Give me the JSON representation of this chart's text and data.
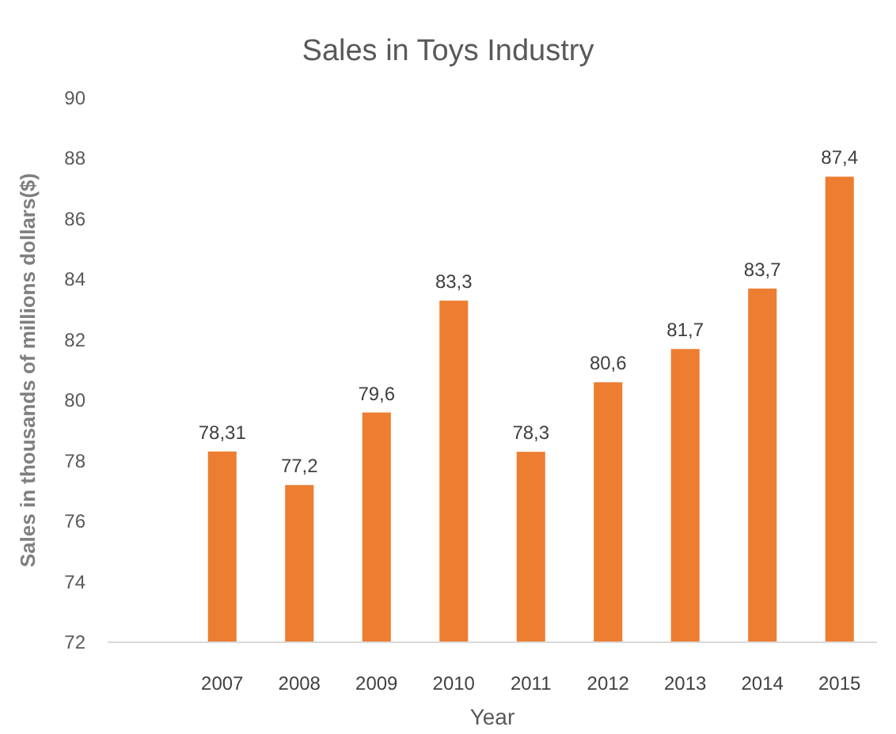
{
  "chart_data": {
    "type": "bar",
    "title": "Sales in Toys Industry",
    "xlabel": "Year",
    "ylabel": "Sales in thousands of millions dollars($)",
    "categories": [
      null,
      "2007",
      "2008",
      "2009",
      "2010",
      "2011",
      "2012",
      "2013",
      "2014",
      "2015"
    ],
    "values": [
      null,
      78.31,
      77.2,
      79.6,
      83.3,
      78.3,
      80.6,
      81.7,
      83.7,
      87.4
    ],
    "value_labels": [
      null,
      "78,31",
      "77,2",
      "79,6",
      "83,3",
      "78,3",
      "80,6",
      "81,7",
      "83,7",
      "87,4"
    ],
    "color": "#ed7d31",
    "ylim": [
      72,
      90
    ],
    "yticks": [
      72,
      74,
      76,
      78,
      80,
      82,
      84,
      86,
      88,
      90
    ],
    "grid": false
  }
}
